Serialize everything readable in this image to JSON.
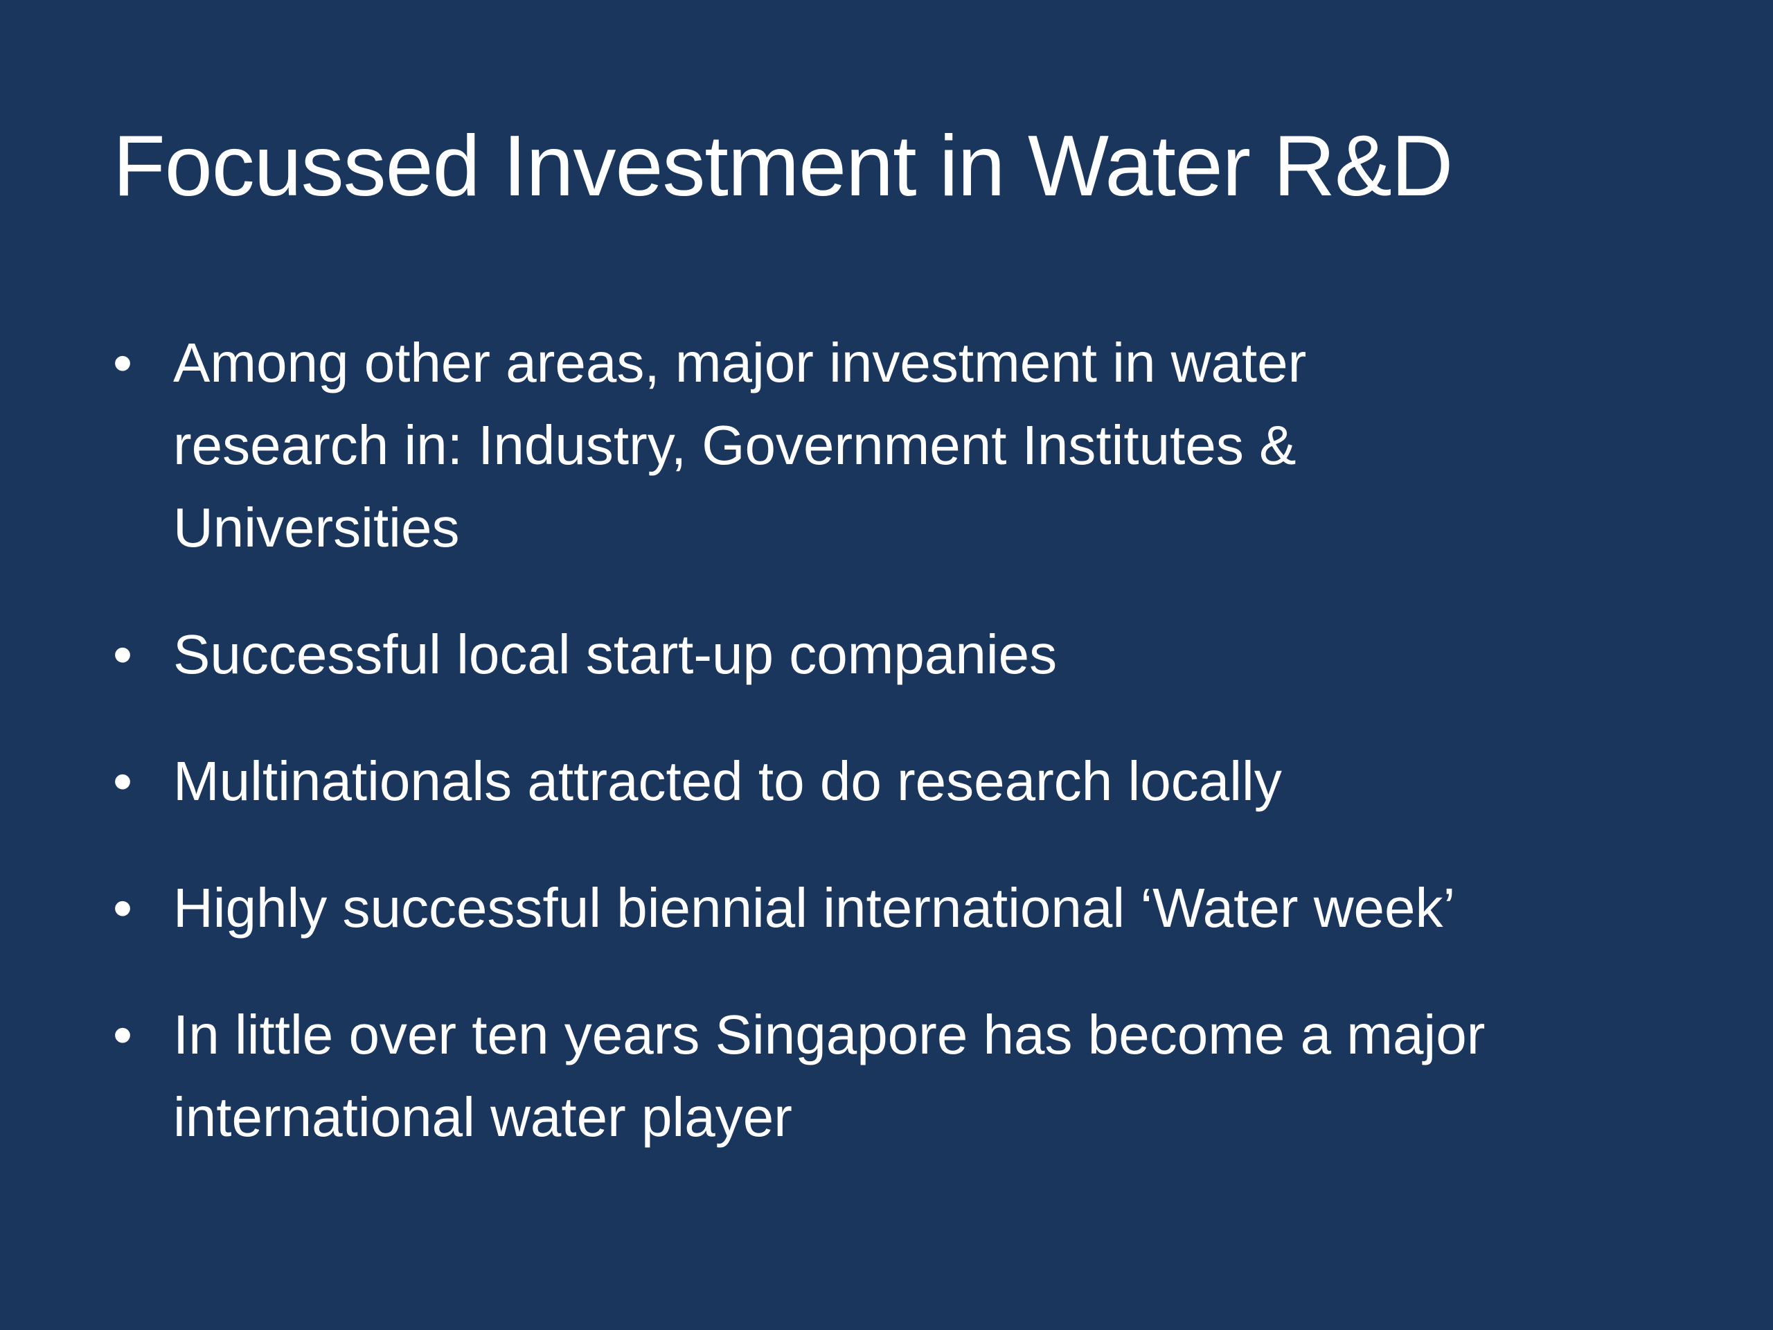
{
  "slide": {
    "title": "Focussed Investment in Water R&D",
    "background_color": "#1b365d",
    "bullet_icon": "bullet-dot",
    "bullets": [
      {
        "lines": [
          "Among other areas, major investment in water",
          "research in: Industry, Government Institutes &",
          "Universities"
        ]
      },
      {
        "lines": [
          "Successful local start-up companies"
        ]
      },
      {
        "lines": [
          "Multinationals attracted to do research locally"
        ]
      },
      {
        "lines": [
          "Highly successful biennial international ‘Water week’"
        ]
      },
      {
        "lines": [
          "In little over ten years Singapore has become a major",
          "international water player"
        ]
      }
    ]
  }
}
